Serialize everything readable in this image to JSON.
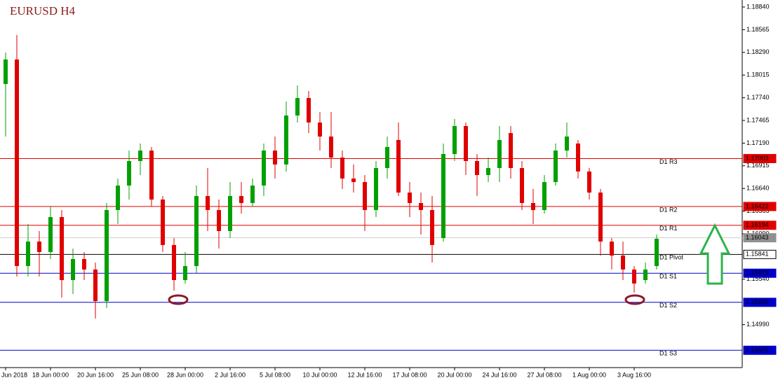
{
  "chart_data": {
    "type": "candlestick",
    "title": "EURUSD H4",
    "ylim": [
      1.14469,
      1.18925
    ],
    "yticks": [
      {
        "value": 1.1884,
        "label": "1.18840"
      },
      1.18565,
      {
        "value": 1.1829,
        "label": "1.18290"
      },
      1.18015,
      {
        "value": 1.1774,
        "label": "1.17740"
      },
      1.17465,
      {
        "value": 1.1719,
        "label": "1.17190"
      },
      1.16915,
      {
        "value": 1.1664,
        "label": "1.16640"
      },
      1.16365,
      {
        "value": 1.1609,
        "label": "1.16090"
      },
      {
        "value": 1.1554,
        "label": "1.15540"
      },
      {
        "value": 1.1499,
        "label": "1.14990"
      }
    ],
    "categories": [
      "Jun 2018",
      null,
      null,
      null,
      "18 Jun 00:00",
      null,
      null,
      null,
      "20 Jun 16:00",
      null,
      null,
      null,
      "25 Jun 08:00",
      null,
      null,
      null,
      "28 Jun 00:00",
      null,
      null,
      null,
      "2 Jul 16:00",
      null,
      null,
      null,
      "5 Jul 08:00",
      null,
      null,
      null,
      "10 Jul 00:00",
      null,
      null,
      null,
      "12 Jul 16:00",
      null,
      null,
      null,
      "17 Jul 08:00",
      null,
      null,
      null,
      "20 Jul 00:00",
      null,
      null,
      null,
      "24 Jul 16:00",
      null,
      null,
      null,
      "27 Jul 08:00",
      null,
      null,
      null,
      "1 Aug 00:00",
      null,
      null,
      null,
      "3 Aug 16:00",
      null,
      null
    ],
    "open": [
      1.17907,
      1.18204,
      1.157,
      1.15997,
      1.1587,
      1.16294,
      1.1553,
      1.15785,
      1.15658,
      1.15275,
      1.16379,
      1.16676,
      1.16973,
      1.171,
      1.16506,
      1.15955,
      1.1553,
      1.157,
      1.16549,
      1.16379,
      1.16124,
      1.16549,
      1.16464,
      1.16676,
      1.171,
      1.16931,
      1.17525,
      1.17737,
      1.1744,
      1.1727,
      1.17015,
      1.16761,
      1.16718,
      1.16379,
      1.16888,
      1.17228,
      1.16591,
      1.16464,
      1.16379,
      1.16039,
      1.17058,
      1.17397,
      1.16973,
      1.16803,
      1.16888,
      1.17312,
      1.16888,
      1.16464,
      1.16379,
      1.16718,
      1.171,
      1.17185,
      1.16846,
      1.16591,
      1.15997,
      1.15827,
      1.15658,
      1.1553,
      1.157
    ],
    "close": [
      1.18204,
      1.157,
      1.15997,
      1.1587,
      1.16294,
      1.1553,
      1.15785,
      1.15658,
      1.15275,
      1.16379,
      1.16676,
      1.16973,
      1.171,
      1.16506,
      1.15955,
      1.1553,
      1.157,
      1.16549,
      1.16379,
      1.16124,
      1.16549,
      1.16464,
      1.16676,
      1.171,
      1.16931,
      1.17525,
      1.17737,
      1.1744,
      1.1727,
      1.17015,
      1.16761,
      1.16718,
      1.16379,
      1.16888,
      1.17143,
      1.16591,
      1.16464,
      1.16379,
      1.15955,
      1.17058,
      1.17397,
      1.16973,
      1.16803,
      1.16888,
      1.17228,
      1.16888,
      1.16464,
      1.16379,
      1.16718,
      1.171,
      1.1727,
      1.16846,
      1.16591,
      1.15997,
      1.15827,
      1.15658,
      1.15488,
      1.15658,
      1.16031
    ],
    "high": [
      1.18288,
      1.18501,
      1.16209,
      1.16124,
      1.16421,
      1.16379,
      1.15912,
      1.1587,
      1.15742,
      1.16464,
      1.16761,
      1.171,
      1.17185,
      1.17143,
      1.16549,
      1.16039,
      1.1587,
      1.16676,
      1.16888,
      1.16506,
      1.16718,
      1.16718,
      1.16761,
      1.17185,
      1.1727,
      1.17694,
      1.1789,
      1.17822,
      1.17567,
      1.17567,
      1.171,
      1.16931,
      1.16803,
      1.16973,
      1.1727,
      1.1744,
      1.16718,
      1.16591,
      1.16549,
      1.17185,
      1.17482,
      1.1744,
      1.17058,
      1.17015,
      1.17397,
      1.17397,
      1.16973,
      1.16634,
      1.16803,
      1.17185,
      1.1744,
      1.17228,
      1.16888,
      1.16634,
      1.16039,
      1.15997,
      1.157,
      1.15742,
      1.16082
    ],
    "low": [
      1.1727,
      1.15573,
      1.15573,
      1.15573,
      1.15785,
      1.15318,
      1.1536,
      1.1553,
      1.15063,
      1.15191,
      1.16209,
      1.16506,
      1.16803,
      1.16421,
      1.1587,
      1.15403,
      1.15488,
      1.15615,
      1.16124,
      1.15912,
      1.16039,
      1.16336,
      1.16421,
      1.16549,
      1.16761,
      1.16846,
      1.1744,
      1.17312,
      1.171,
      1.16888,
      1.16634,
      1.16591,
      1.16124,
      1.16294,
      1.16761,
      1.16549,
      1.16294,
      1.16082,
      1.15742,
      1.15997,
      1.16973,
      1.16803,
      1.16549,
      1.16718,
      1.16718,
      1.16761,
      1.16379,
      1.16209,
      1.16336,
      1.16676,
      1.17015,
      1.16761,
      1.16506,
      1.15827,
      1.15658,
      1.1553,
      1.15377,
      1.15488,
      1.15658
    ],
    "up_color": "#00a000",
    "down_color": "#e00000",
    "levels": {
      "names": [
        "D1 R3",
        "D1 R2",
        "D1 R1",
        "D1 Pivot",
        "D1 S1",
        "D1 S2",
        "D1 S3"
      ],
      "values": [
        1.17003,
        1.16422,
        1.16194,
        1.15841,
        1.15613,
        1.1526,
        1.14679
      ],
      "value_labels": [
        "1.17003",
        "1.16422",
        "1.16194",
        "1.15841",
        "1.15613",
        "1.15260",
        "1.14679"
      ],
      "colors": [
        "#e00000",
        "#e00000",
        "#e00000",
        "#000000",
        "#0000c8",
        "#0000c8",
        "#0000c8"
      ]
    },
    "current_price": 1.16043,
    "current_color": "#909090"
  }
}
